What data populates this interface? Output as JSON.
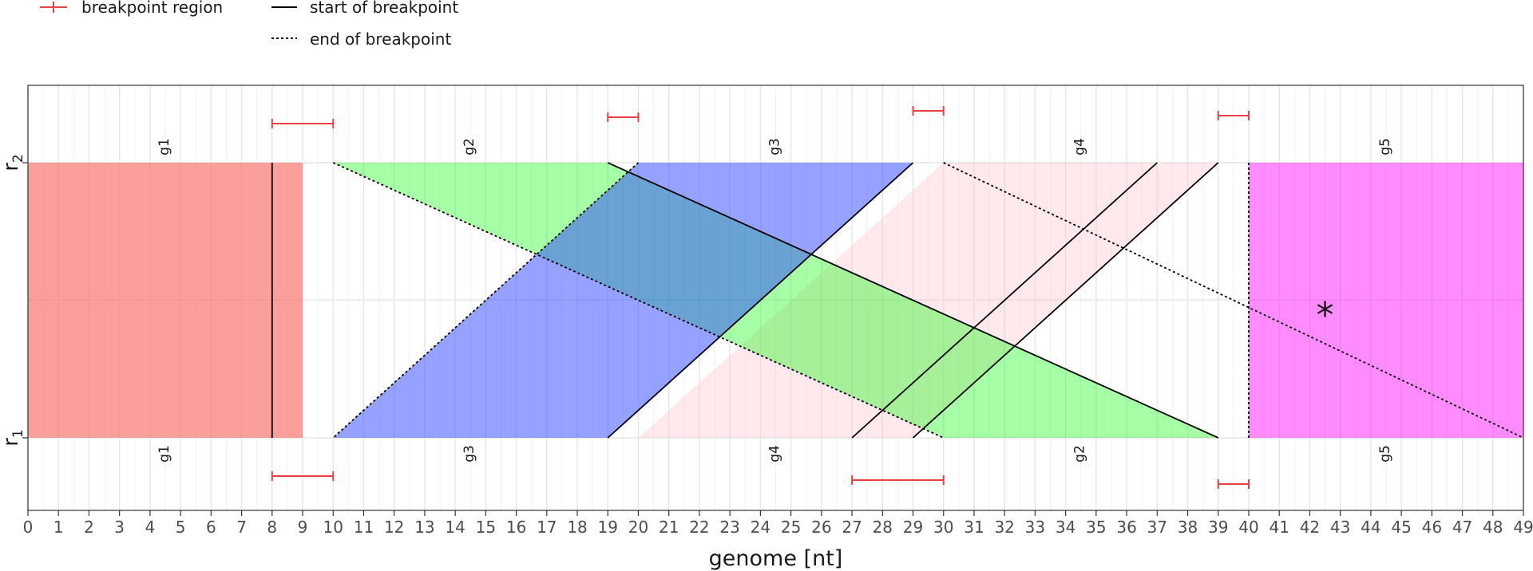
{
  "chart_data": {
    "type": "genome-rearrangement",
    "xlabel": "genome [nt]",
    "xlim": [
      0,
      49
    ],
    "x_ticks": [
      0,
      1,
      2,
      3,
      4,
      5,
      6,
      7,
      8,
      9,
      10,
      11,
      12,
      13,
      14,
      15,
      16,
      17,
      18,
      19,
      20,
      21,
      22,
      23,
      24,
      25,
      26,
      27,
      28,
      29,
      30,
      31,
      32,
      33,
      34,
      35,
      36,
      37,
      38,
      39,
      40,
      41,
      42,
      43,
      44,
      45,
      46,
      47,
      48,
      49
    ],
    "rows": [
      {
        "key": "r2",
        "label": "r",
        "sub": "2"
      },
      {
        "key": "r1",
        "label": "r",
        "sub": "1"
      }
    ],
    "legend": {
      "breakpoint_region": "breakpoint region",
      "start": "start of breakpoint",
      "end": "end of breakpoint"
    },
    "annotation": "*",
    "annotation_x": 42.5,
    "genes_r2": [
      {
        "name": "g1",
        "start": 0,
        "end": 9
      },
      {
        "name": "g2",
        "start": 10,
        "end": 19
      },
      {
        "name": "g3",
        "start": 20,
        "end": 29
      },
      {
        "name": "g4",
        "start": 30,
        "end": 39
      },
      {
        "name": "g5",
        "start": 40,
        "end": 49
      }
    ],
    "genes_r1": [
      {
        "name": "g1",
        "start": 0,
        "end": 9
      },
      {
        "name": "g3",
        "start": 10,
        "end": 19
      },
      {
        "name": "g4",
        "start": 20,
        "end": 29
      },
      {
        "name": "g2",
        "start": 30,
        "end": 39
      },
      {
        "name": "g5",
        "start": 40,
        "end": 49
      }
    ],
    "bands": [
      {
        "gene": "g1",
        "r2": [
          0,
          9
        ],
        "r1": [
          0,
          9
        ],
        "color": "#f8766d",
        "opacity": 0.7
      },
      {
        "gene": "g4",
        "r2": [
          30,
          39
        ],
        "r1": [
          20,
          29
        ],
        "color": "#ffc0cb",
        "opacity": 0.35
      },
      {
        "gene": "g2",
        "r2": [
          10,
          19
        ],
        "r1": [
          30,
          39
        ],
        "color": "#00ff00",
        "opacity": 0.35
      },
      {
        "gene": "g3",
        "r2": [
          20,
          29
        ],
        "r1": [
          10,
          19
        ],
        "color": "#2b45ff",
        "opacity": 0.5
      },
      {
        "gene": "g5",
        "r2": [
          40,
          49
        ],
        "r1": [
          40,
          49
        ],
        "color": "#ff00ff",
        "opacity": 0.45
      }
    ],
    "breakpoint_regions_r2": [
      [
        8,
        10
      ],
      [
        19,
        20
      ],
      [
        29,
        30
      ],
      [
        39,
        40
      ]
    ],
    "breakpoint_regions_r1": [
      [
        8,
        10
      ],
      [
        27,
        30
      ],
      [
        39,
        40
      ]
    ],
    "start_lines": [
      {
        "r2": 8,
        "r1": 8
      },
      {
        "r2": 29,
        "r1": 19
      },
      {
        "r2": 19,
        "r1": 39
      },
      {
        "r2": 37,
        "r1": 27
      },
      {
        "r2": 39,
        "r1": 29
      }
    ],
    "end_lines": [
      {
        "r2": 10,
        "r1": 30
      },
      {
        "r2": 20,
        "r1": 10
      },
      {
        "r2": 30,
        "r1": 49
      },
      {
        "r2": 40,
        "r1": 40
      }
    ],
    "colors": {
      "breakpoint": "#e8413f",
      "grid_major": "#e6e6e6",
      "grid_minor": "#f2f2f2",
      "frame": "#333333",
      "line": "#000000"
    }
  }
}
